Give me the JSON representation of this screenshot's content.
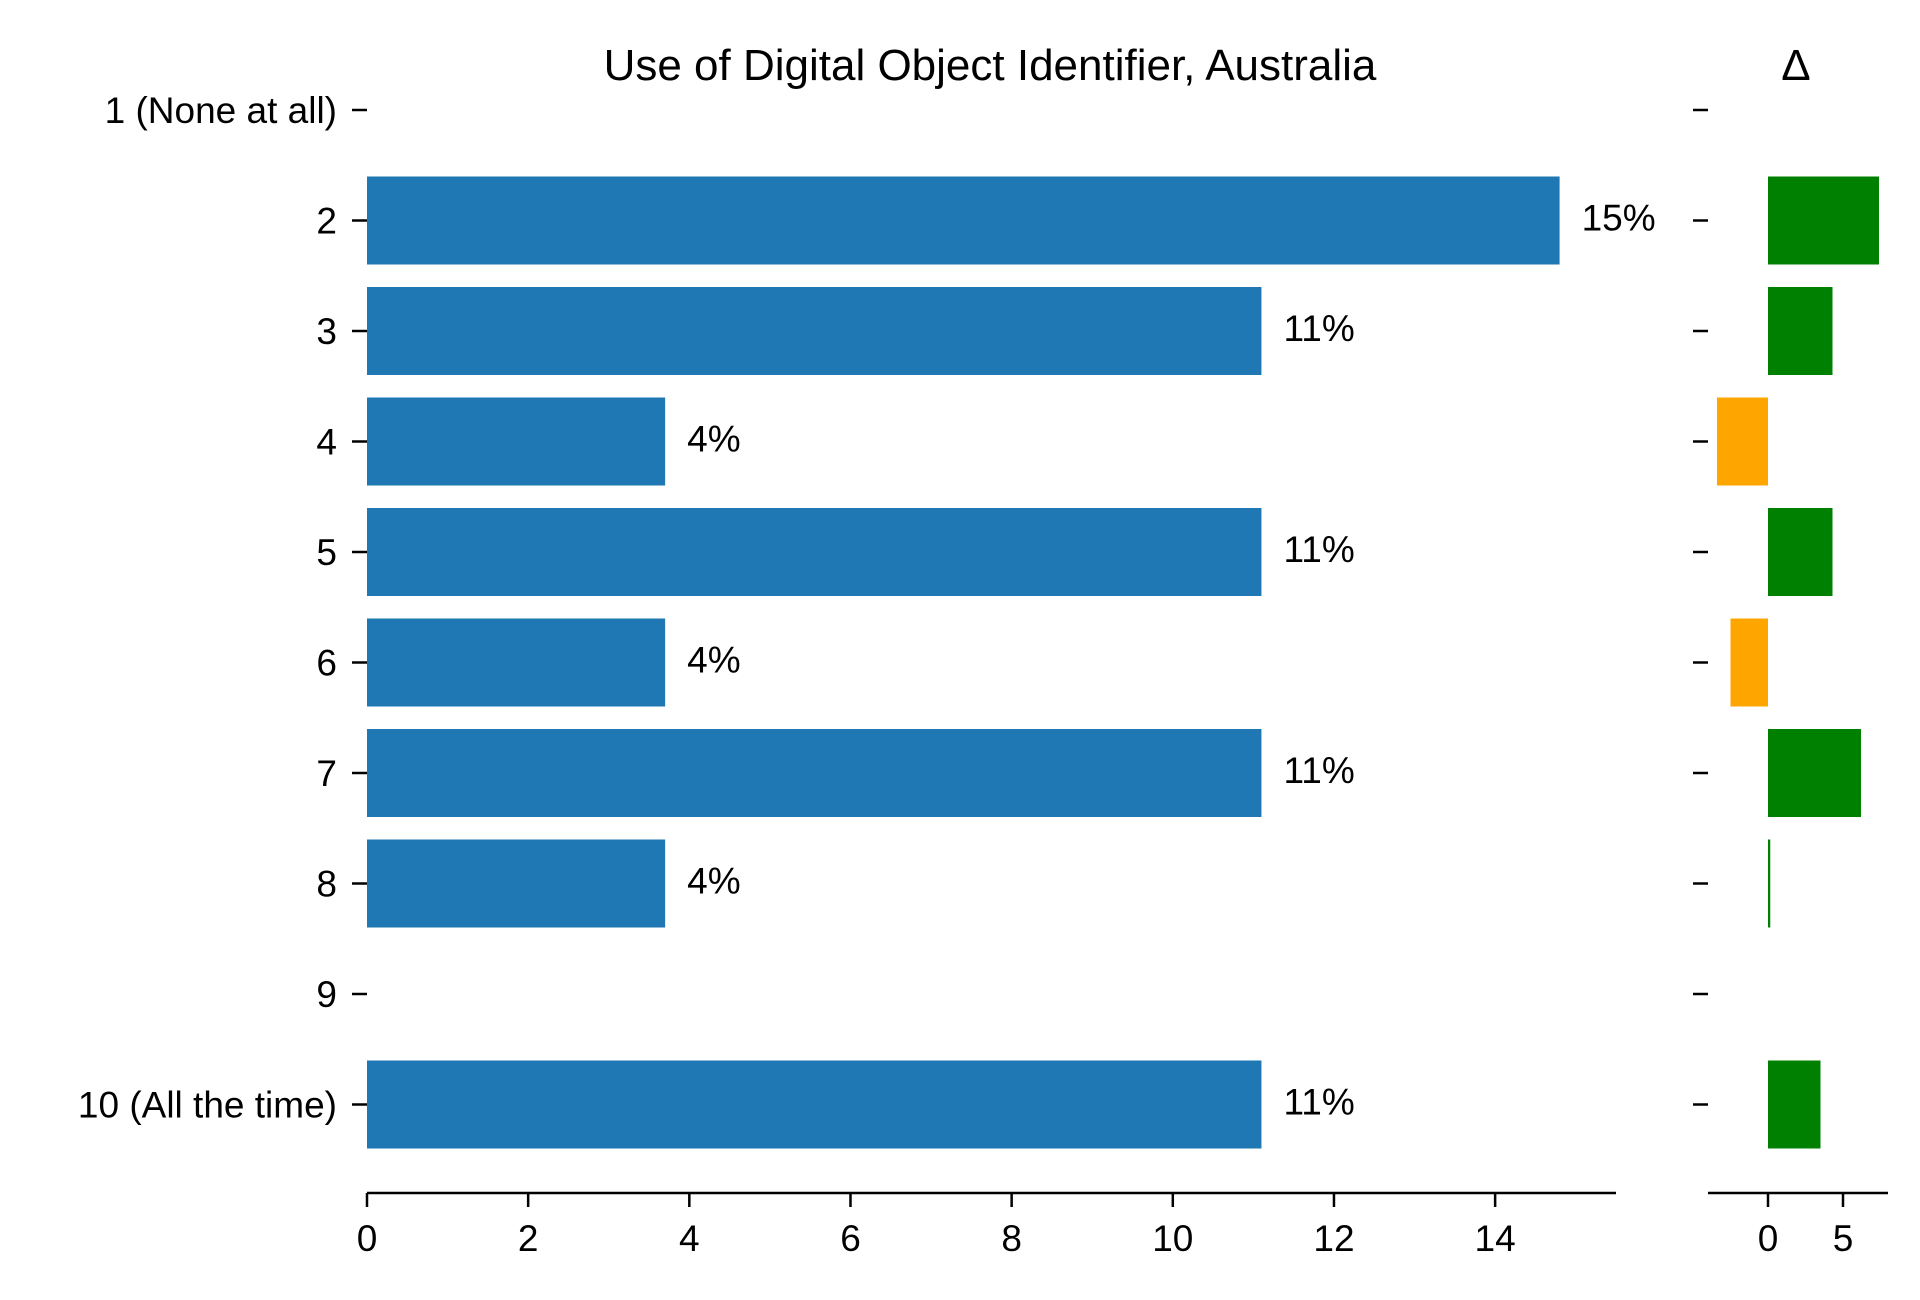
{
  "chart_data": [
    {
      "type": "bar",
      "orientation": "horizontal",
      "title": "Use of Digital Object Identifier, Australia",
      "categories": [
        "1 (None at all)",
        "2",
        "3",
        "4",
        "5",
        "6",
        "7",
        "8",
        "9",
        "10 (All the time)"
      ],
      "values": [
        0,
        14.8,
        11.1,
        3.7,
        11.1,
        3.7,
        11.1,
        3.7,
        0,
        11.1
      ],
      "data_labels": [
        "",
        "15%",
        "11%",
        "4%",
        "11%",
        "4%",
        "11%",
        "4%",
        "",
        "11%"
      ],
      "xticks": [
        "0",
        "2",
        "4",
        "6",
        "8",
        "10",
        "12",
        "14"
      ],
      "xlim": [
        0,
        15.5
      ],
      "color": "#1f77b4",
      "grid": false
    },
    {
      "type": "bar",
      "orientation": "horizontal",
      "title": "Δ",
      "categories": [
        "1 (None at all)",
        "2",
        "3",
        "4",
        "5",
        "6",
        "7",
        "8",
        "9",
        "10 (All the time)"
      ],
      "values": [
        0,
        7.4,
        4.3,
        -3.4,
        4.3,
        -2.5,
        6.2,
        0.15,
        0,
        3.5
      ],
      "xticks": [
        "0",
        "5"
      ],
      "xlim": [
        -4,
        8
      ],
      "positive_color": "#008000",
      "negative_color": "#ffa500",
      "grid": false
    }
  ]
}
